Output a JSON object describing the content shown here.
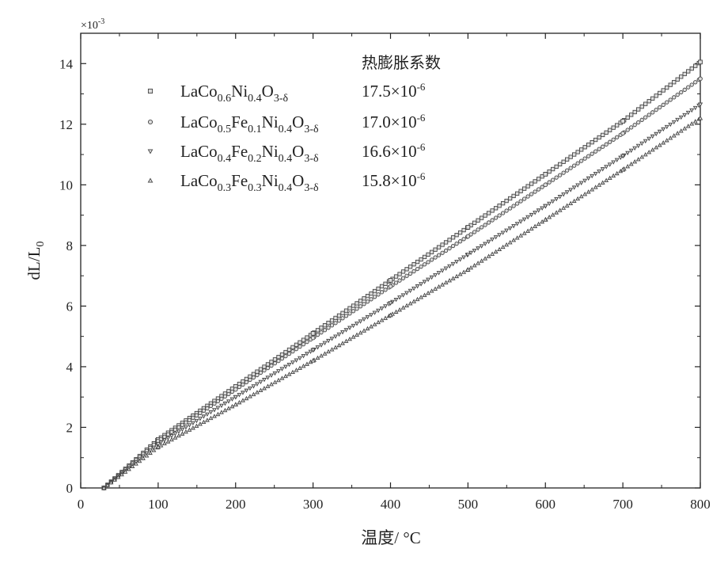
{
  "chart_data": {
    "type": "scatter",
    "xlabel": "温度/ °C",
    "ylabel": "dL/L",
    "ylabel_sub": "0",
    "y_multiplier": "×10",
    "y_multiplier_exp": "-3",
    "xlim": [
      0,
      800
    ],
    "ylim": [
      0,
      15
    ],
    "xticks": [
      0,
      100,
      200,
      300,
      400,
      500,
      600,
      700,
      800
    ],
    "yticks": [
      0,
      2,
      4,
      6,
      8,
      10,
      12,
      14
    ],
    "grid": false,
    "legend_position": "top-left",
    "legend_title": "热膨胀系数",
    "series": [
      {
        "name": "LaCo0.6Ni0.4O3-δ",
        "name_parts": [
          [
            "LaCo",
            ""
          ],
          [
            "0.6",
            "sub"
          ],
          [
            "Ni",
            ""
          ],
          [
            "0.4",
            "sub"
          ],
          [
            "O",
            ""
          ],
          [
            "3-δ",
            "sub"
          ]
        ],
        "coefficient": "17.5×10",
        "coefficient_exp": "-6",
        "marker": "square",
        "points": [
          [
            30,
            0
          ],
          [
            100,
            1.6
          ],
          [
            200,
            3.35
          ],
          [
            300,
            5.1
          ],
          [
            400,
            6.85
          ],
          [
            500,
            8.6
          ],
          [
            600,
            10.35
          ],
          [
            700,
            12.1
          ],
          [
            800,
            14.05
          ]
        ]
      },
      {
        "name": "LaCo0.5Fe0.1Ni0.4O3-δ",
        "name_parts": [
          [
            "LaCo",
            ""
          ],
          [
            "0.5",
            "sub"
          ],
          [
            "Fe",
            ""
          ],
          [
            "0.1",
            "sub"
          ],
          [
            "Ni",
            ""
          ],
          [
            "0.4",
            "sub"
          ],
          [
            "O",
            ""
          ],
          [
            "3-δ",
            "sub"
          ]
        ],
        "coefficient": "17.0×10",
        "coefficient_exp": "-6",
        "marker": "circle",
        "points": [
          [
            30,
            0
          ],
          [
            100,
            1.55
          ],
          [
            200,
            3.25
          ],
          [
            300,
            4.95
          ],
          [
            400,
            6.65
          ],
          [
            500,
            8.3
          ],
          [
            600,
            10.0
          ],
          [
            700,
            11.7
          ],
          [
            800,
            13.5
          ]
        ]
      },
      {
        "name": "LaCo0.4Fe0.2Ni0.4O3-δ",
        "name_parts": [
          [
            "LaCo",
            ""
          ],
          [
            "0.4",
            "sub"
          ],
          [
            "Fe",
            ""
          ],
          [
            "0.2",
            "sub"
          ],
          [
            "Ni",
            ""
          ],
          [
            "0.4",
            "sub"
          ],
          [
            "O",
            ""
          ],
          [
            "3-δ",
            "sub"
          ]
        ],
        "coefficient": "16.6×10",
        "coefficient_exp": "-6",
        "marker": "triangle-down",
        "points": [
          [
            30,
            0
          ],
          [
            100,
            1.45
          ],
          [
            200,
            3.0
          ],
          [
            300,
            4.55
          ],
          [
            400,
            6.1
          ],
          [
            500,
            7.7
          ],
          [
            600,
            9.3
          ],
          [
            700,
            10.95
          ],
          [
            800,
            12.65
          ]
        ]
      },
      {
        "name": "LaCo0.3Fe0.3Ni0.4O3-δ",
        "name_parts": [
          [
            "LaCo",
            ""
          ],
          [
            "0.3",
            "sub"
          ],
          [
            "Fe",
            ""
          ],
          [
            "0.3",
            "sub"
          ],
          [
            "Ni",
            ""
          ],
          [
            "0.4",
            "sub"
          ],
          [
            "O",
            ""
          ],
          [
            "3-δ",
            "sub"
          ]
        ],
        "coefficient": "15.8×10",
        "coefficient_exp": "-6",
        "marker": "triangle-up",
        "points": [
          [
            30,
            0
          ],
          [
            100,
            1.35
          ],
          [
            200,
            2.75
          ],
          [
            300,
            4.2
          ],
          [
            400,
            5.7
          ],
          [
            500,
            7.2
          ],
          [
            600,
            8.85
          ],
          [
            700,
            10.5
          ],
          [
            800,
            12.2
          ]
        ]
      }
    ],
    "colors": {
      "axis": "#222222",
      "marker": "#444444",
      "marker_fill": "#dddddd"
    }
  }
}
